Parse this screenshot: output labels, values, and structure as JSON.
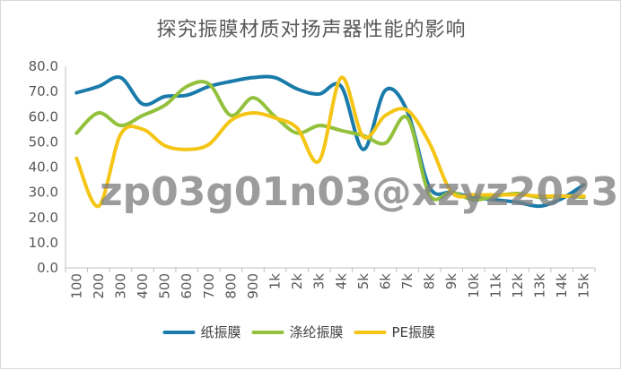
{
  "chart_data": {
    "type": "line",
    "title": "探究振膜材质对扬声器性能的影响",
    "xlabel": "",
    "ylabel": "",
    "categories": [
      "100",
      "200",
      "300",
      "400",
      "500",
      "600",
      "700",
      "800",
      "900",
      "1k",
      "2k",
      "3k",
      "4k",
      "5k",
      "6k",
      "7k",
      "8k",
      "9k",
      "10k",
      "11k",
      "12k",
      "13k",
      "14k",
      "15k"
    ],
    "ylim": [
      0,
      80
    ],
    "yticks": [
      "0.0",
      "10.0",
      "20.0",
      "30.0",
      "40.0",
      "50.0",
      "60.0",
      "70.0",
      "80.0"
    ],
    "grid": false,
    "legend_position": "bottom",
    "series": [
      {
        "name": "纸振膜",
        "color": "#1a7bab",
        "values": [
          69.5,
          72,
          75.5,
          65,
          68,
          68.5,
          72,
          74,
          75.5,
          75.5,
          71,
          69,
          72,
          47,
          70.5,
          62,
          32,
          30,
          28,
          27,
          26,
          24.5,
          27.5,
          33
        ]
      },
      {
        "name": "涤纶振膜",
        "color": "#93c13c",
        "values": [
          53.5,
          61.5,
          56.5,
          60.5,
          64.5,
          72,
          73,
          60.5,
          67.5,
          60,
          53.5,
          56.5,
          54.5,
          52.5,
          49.5,
          59.5,
          29,
          30,
          27,
          28.5,
          29.5,
          28,
          28.5,
          28
        ]
      },
      {
        "name": "PE振膜",
        "color": "#f5c516",
        "values": [
          43.5,
          24.5,
          53,
          55,
          48.5,
          47,
          49,
          58.5,
          61.5,
          59.5,
          55.5,
          42.5,
          75.5,
          52,
          60.5,
          62.5,
          49.5,
          30,
          29,
          29,
          29,
          28.5,
          28.5,
          28.5
        ]
      }
    ]
  },
  "watermark": "zp03g01n03@xzyz2023"
}
